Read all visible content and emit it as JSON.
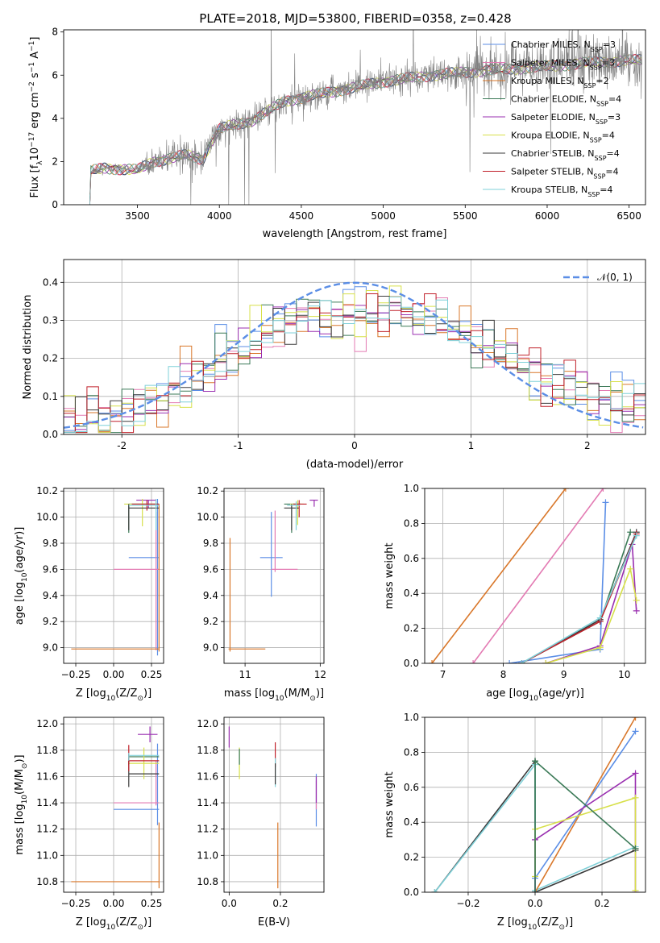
{
  "figure": {
    "title": "PLATE=2018, MJD=53800, FIBERID=0358, z=0.428"
  },
  "colors": {
    "Chabrier MILES": "#5b8ee6",
    "Salpeter MILES": "#e37bb3",
    "Kroupa MILES": "#d9772a",
    "Chabrier ELODIE": "#3b7a57",
    "Salpeter ELODIE": "#9a2fb0",
    "Kroupa ELODIE": "#d7e04a",
    "Chabrier STELIB": "#3a3a3a",
    "Salpeter STELIB": "#c0202a",
    "Kroupa STELIB": "#7fd0d8",
    "data": "#808080",
    "normal": "#5b8ee6"
  },
  "models": [
    {
      "name": "Chabrier MILES",
      "label": "Chabrier MILES, N",
      "sub": "SSP",
      "n": "=3"
    },
    {
      "name": "Salpeter MILES",
      "label": "Salpeter MILES, N",
      "sub": "SSP",
      "n": "=3"
    },
    {
      "name": "Kroupa MILES",
      "label": "Kroupa MILES, N",
      "sub": "SSP",
      "n": "=2"
    },
    {
      "name": "Chabrier ELODIE",
      "label": "Chabrier ELODIE, N",
      "sub": "SSP",
      "n": "=4"
    },
    {
      "name": "Salpeter ELODIE",
      "label": "Salpeter ELODIE, N",
      "sub": "SSP",
      "n": "=3"
    },
    {
      "name": "Kroupa ELODIE",
      "label": "Kroupa ELODIE, N",
      "sub": "SSP",
      "n": "=4"
    },
    {
      "name": "Chabrier STELIB",
      "label": "Chabrier STELIB, N",
      "sub": "SSP",
      "n": "=4"
    },
    {
      "name": "Salpeter STELIB",
      "label": "Salpeter STELIB, N",
      "sub": "SSP",
      "n": "=4"
    },
    {
      "name": "Kroupa STELIB",
      "label": "Kroupa STELIB, N",
      "sub": "SSP",
      "n": "=4"
    }
  ],
  "chart_data": [
    {
      "id": "spectrum",
      "type": "line",
      "xlabel": "wavelength [Angstrom, rest frame]",
      "ylabel_parts": [
        "Flux [f",
        "λ",
        "10",
        "−17",
        " erg cm",
        "−2",
        " s",
        "−1",
        " A",
        "−1",
        "]"
      ],
      "xlim": [
        3050,
        6600
      ],
      "ylim": [
        0,
        8.1
      ],
      "xticks": [
        3500,
        4000,
        4500,
        5000,
        5500,
        6000,
        6500
      ],
      "yticks": [
        0,
        2,
        4,
        6,
        8
      ],
      "x_start": 3210,
      "x_end": 6580,
      "continuum_knots": [
        [
          3210,
          0.0
        ],
        [
          3215,
          1.55
        ],
        [
          3300,
          1.7
        ],
        [
          3500,
          1.6
        ],
        [
          3600,
          2.0
        ],
        [
          3800,
          2.3
        ],
        [
          3900,
          2.1
        ],
        [
          3950,
          2.9
        ],
        [
          4000,
          3.5
        ],
        [
          4200,
          3.9
        ],
        [
          4400,
          4.8
        ],
        [
          4600,
          5.1
        ],
        [
          4800,
          5.4
        ],
        [
          5000,
          5.7
        ],
        [
          5300,
          6.0
        ],
        [
          5600,
          6.2
        ],
        [
          6000,
          6.4
        ],
        [
          6300,
          6.6
        ],
        [
          6580,
          6.7
        ]
      ]
    },
    {
      "id": "residuals",
      "type": "line",
      "xlabel": "(data-model)/error",
      "ylabel": "Normed distribution",
      "xlim": [
        -2.5,
        2.5
      ],
      "ylim": [
        0,
        0.46
      ],
      "xticks": [
        -2,
        -1,
        0,
        1,
        2
      ],
      "yticks": [
        0.0,
        0.1,
        0.2,
        0.3,
        0.4
      ],
      "legend": "𝒩(0, 1)",
      "bin_width": 0.1,
      "histogram_envelope": [
        [
          -2.5,
          0.03
        ],
        [
          -2.0,
          0.055
        ],
        [
          -1.5,
          0.12
        ],
        [
          -1.0,
          0.22
        ],
        [
          -0.5,
          0.31
        ],
        [
          0.0,
          0.33
        ],
        [
          0.5,
          0.32
        ],
        [
          1.0,
          0.26
        ],
        [
          1.5,
          0.17
        ],
        [
          2.0,
          0.1
        ],
        [
          2.5,
          0.065
        ]
      ]
    },
    {
      "id": "z-age",
      "type": "scatter",
      "xlabel_parts": [
        "Z [log",
        "10",
        "(Z/Z",
        "⊙",
        ")]"
      ],
      "ylabel_parts": [
        "age  [log",
        "10",
        "(age/yr)]"
      ],
      "xlim": [
        -0.33,
        0.33
      ],
      "ylim": [
        8.88,
        10.22
      ],
      "xticks": [
        -0.25,
        0.0,
        0.25
      ],
      "xtick_labels": [
        "−0.25",
        "0.00",
        "0.25"
      ],
      "yticks": [
        9.0,
        9.2,
        9.4,
        9.6,
        9.8,
        10.0,
        10.2
      ],
      "points": [
        {
          "m": "Chabrier MILES",
          "x": 0.29,
          "xe": [
            0.19,
            0.01
          ],
          "y": 9.69,
          "ye": [
            0.75,
            0.45
          ]
        },
        {
          "m": "Salpeter MILES",
          "x": 0.28,
          "xe": [
            0.28,
            0.02
          ],
          "y": 9.6,
          "ye": [
            0.62,
            0.44
          ]
        },
        {
          "m": "Kroupa MILES",
          "x": 0.3,
          "xe": [
            0.58,
            0.0
          ],
          "y": 8.99,
          "ye": [
            0.02,
            1.11
          ]
        },
        {
          "m": "Chabrier ELODIE",
          "x": 0.1,
          "xe": [
            0.0,
            0.2
          ],
          "y": 10.1,
          "ye": [
            0.22,
            0.0
          ]
        },
        {
          "m": "Salpeter ELODIE",
          "x": 0.23,
          "xe": [
            0.08,
            0.05
          ],
          "y": 10.13,
          "ye": [
            0.06,
            0.0
          ]
        },
        {
          "m": "Kroupa ELODIE",
          "x": 0.19,
          "xe": [
            0.12,
            0.1
          ],
          "y": 10.1,
          "ye": [
            0.17,
            0.04
          ]
        },
        {
          "m": "Chabrier STELIB",
          "x": 0.1,
          "xe": [
            0.0,
            0.2
          ],
          "y": 10.07,
          "ye": [
            0.17,
            0.03
          ]
        },
        {
          "m": "Salpeter STELIB",
          "x": 0.22,
          "xe": [
            0.1,
            0.08
          ],
          "y": 10.1,
          "ye": [
            0.05,
            0.03
          ]
        },
        {
          "m": "Kroupa STELIB",
          "x": 0.28,
          "xe": [
            0.18,
            0.02
          ],
          "y": 10.09,
          "ye": [
            0.19,
            0.05
          ]
        }
      ]
    },
    {
      "id": "mass-age",
      "type": "scatter",
      "xlabel_parts": [
        "mass [log",
        "10",
        "(M/M",
        "⊙",
        ")]"
      ],
      "ylabel_parts": [],
      "xlim": [
        10.72,
        12.05
      ],
      "ylim": [
        8.88,
        10.22
      ],
      "xticks": [
        11,
        12
      ],
      "xtick_labels": [
        "11",
        "12"
      ],
      "yticks": [
        9.0,
        9.2,
        9.4,
        9.6,
        9.8,
        10.0,
        10.2
      ],
      "points": [
        {
          "m": "Chabrier MILES",
          "x": 11.35,
          "xe": [
            0.15,
            0.15
          ],
          "y": 9.69,
          "ye": [
            0.3,
            0.35
          ]
        },
        {
          "m": "Salpeter MILES",
          "x": 11.4,
          "xe": [
            0.05,
            0.3
          ],
          "y": 9.6,
          "ye": [
            0.02,
            0.45
          ]
        },
        {
          "m": "Kroupa MILES",
          "x": 10.8,
          "xe": [
            0.02,
            0.47
          ],
          "y": 8.99,
          "ye": [
            0.02,
            0.85
          ]
        },
        {
          "m": "Chabrier ELODIE",
          "x": 11.62,
          "xe": [
            0.1,
            0.12
          ],
          "y": 10.1,
          "ye": [
            0.22,
            0.0
          ]
        },
        {
          "m": "Salpeter ELODIE",
          "x": 11.92,
          "xe": [
            0.06,
            0.05
          ],
          "y": 10.13,
          "ye": [
            0.05,
            0.0
          ]
        },
        {
          "m": "Kroupa ELODIE",
          "x": 11.7,
          "xe": [
            0.1,
            0.08
          ],
          "y": 10.1,
          "ye": [
            0.16,
            0.03
          ]
        },
        {
          "m": "Chabrier STELIB",
          "x": 11.62,
          "xe": [
            0.1,
            0.1
          ],
          "y": 10.07,
          "ye": [
            0.17,
            0.03
          ]
        },
        {
          "m": "Salpeter STELIB",
          "x": 11.72,
          "xe": [
            0.08,
            0.1
          ],
          "y": 10.1,
          "ye": [
            0.1,
            0.03
          ]
        },
        {
          "m": "Kroupa STELIB",
          "x": 11.68,
          "xe": [
            0.12,
            0.05
          ],
          "y": 10.09,
          "ye": [
            0.19,
            0.03
          ]
        }
      ]
    },
    {
      "id": "age-weight",
      "type": "line",
      "xlabel_parts": [
        "age  [log",
        "10",
        "(age/yr)]"
      ],
      "ylabel": "mass weight",
      "xlim": [
        6.7,
        10.35
      ],
      "ylim": [
        0,
        1.0
      ],
      "xticks": [
        7,
        8,
        9,
        10
      ],
      "yticks": [
        0.0,
        0.2,
        0.4,
        0.6,
        0.8,
        1.0
      ],
      "series": [
        {
          "m": "Kroupa MILES",
          "x": [
            6.82,
            9.03
          ],
          "y": [
            0.0,
            1.0
          ]
        },
        {
          "m": "Salpeter MILES",
          "x": [
            7.5,
            9.65
          ],
          "y": [
            0.0,
            1.0
          ]
        },
        {
          "m": "Chabrier MILES",
          "x": [
            8.1,
            9.6,
            9.69
          ],
          "y": [
            0.0,
            0.08,
            0.92
          ]
        },
        {
          "m": "Salpeter ELODIE",
          "x": [
            8.7,
            9.6,
            10.13,
            10.2
          ],
          "y": [
            0.0,
            0.1,
            0.68,
            0.3
          ]
        },
        {
          "m": "Chabrier ELODIE",
          "x": [
            8.3,
            9.6,
            10.1
          ],
          "y": [
            0.0,
            0.24,
            0.75
          ]
        },
        {
          "m": "Kroupa ELODIE",
          "x": [
            8.7,
            9.6,
            10.1,
            10.2
          ],
          "y": [
            0.0,
            0.09,
            0.54,
            0.36
          ]
        },
        {
          "m": "Chabrier STELIB",
          "x": [
            8.3,
            9.6,
            10.2
          ],
          "y": [
            0.0,
            0.25,
            0.75
          ]
        },
        {
          "m": "Salpeter STELIB",
          "x": [
            8.3,
            9.6,
            10.2
          ],
          "y": [
            0.0,
            0.24,
            0.74
          ]
        },
        {
          "m": "Kroupa STELIB",
          "x": [
            8.3,
            9.6,
            10.2
          ],
          "y": [
            0.0,
            0.26,
            0.73
          ]
        }
      ]
    },
    {
      "id": "z-mass",
      "type": "scatter",
      "xlabel_parts": [
        "Z [log",
        "10",
        "(Z/Z",
        "⊙",
        ")]"
      ],
      "ylabel_parts": [
        "mass [log",
        "10",
        "(M/M",
        "⊙",
        ")]"
      ],
      "xlim": [
        -0.33,
        0.33
      ],
      "ylim": [
        10.72,
        12.05
      ],
      "xticks": [
        -0.25,
        0.0,
        0.25
      ],
      "xtick_labels": [
        "−0.25",
        "0.00",
        "0.25"
      ],
      "yticks": [
        10.8,
        11.0,
        11.2,
        11.4,
        11.6,
        11.8,
        12.0
      ],
      "points": [
        {
          "m": "Chabrier MILES",
          "x": 0.29,
          "xe": [
            0.29,
            0.01
          ],
          "y": 11.35,
          "ye": [
            0.12,
            0.5
          ]
        },
        {
          "m": "Salpeter MILES",
          "x": 0.28,
          "xe": [
            0.28,
            0.02
          ],
          "y": 11.4,
          "ye": [
            0.02,
            0.32
          ]
        },
        {
          "m": "Kroupa MILES",
          "x": 0.3,
          "xe": [
            0.58,
            0.0
          ],
          "y": 10.8,
          "ye": [
            0.05,
            0.45
          ]
        },
        {
          "m": "Chabrier ELODIE",
          "x": 0.1,
          "xe": [
            0.0,
            0.2
          ],
          "y": 11.75,
          "ye": [
            0.06,
            0.02
          ]
        },
        {
          "m": "Salpeter ELODIE",
          "x": 0.24,
          "xe": [
            0.08,
            0.05
          ],
          "y": 11.92,
          "ye": [
            0.06,
            0.06
          ]
        },
        {
          "m": "Kroupa ELODIE",
          "x": 0.2,
          "xe": [
            0.1,
            0.1
          ],
          "y": 11.7,
          "ye": [
            0.12,
            0.12
          ]
        },
        {
          "m": "Chabrier STELIB",
          "x": 0.1,
          "xe": [
            0.0,
            0.2
          ],
          "y": 11.62,
          "ye": [
            0.1,
            0.12
          ]
        },
        {
          "m": "Salpeter STELIB",
          "x": 0.1,
          "xe": [
            0.0,
            0.2
          ],
          "y": 11.72,
          "ye": [
            0.08,
            0.12
          ]
        },
        {
          "m": "Kroupa STELIB",
          "x": 0.1,
          "xe": [
            0.0,
            0.2
          ],
          "y": 11.76,
          "ye": [
            0.04,
            0.02
          ]
        }
      ]
    },
    {
      "id": "ebv-mass",
      "type": "scatter",
      "xlabel": "E(B-V)",
      "ylabel_parts": [],
      "xlim": [
        -0.02,
        0.37
      ],
      "ylim": [
        10.72,
        12.05
      ],
      "xticks": [
        0.0,
        0.2
      ],
      "xtick_labels": [
        "0.0",
        "0.2"
      ],
      "yticks": [
        10.8,
        11.0,
        11.2,
        11.4,
        11.6,
        11.8,
        12.0
      ],
      "points": [
        {
          "m": "Salpeter ELODIE",
          "x": 0.0,
          "xe": [
            0,
            0
          ],
          "y": 11.92,
          "ye": [
            0.1,
            0.06
          ]
        },
        {
          "m": "Kroupa ELODIE",
          "x": 0.04,
          "xe": [
            0,
            0
          ],
          "y": 11.7,
          "ye": [
            0.12,
            0.12
          ]
        },
        {
          "m": "Chabrier ELODIE",
          "x": 0.04,
          "xe": [
            0,
            0
          ],
          "y": 11.75,
          "ye": [
            0.06,
            0.06
          ]
        },
        {
          "m": "Salpeter STELIB",
          "x": 0.18,
          "xe": [
            0,
            0
          ],
          "y": 11.75,
          "ye": [
            0.08,
            0.11
          ]
        },
        {
          "m": "Kroupa STELIB",
          "x": 0.18,
          "xe": [
            0,
            0
          ],
          "y": 11.62,
          "ye": [
            0.1,
            0.12
          ]
        },
        {
          "m": "Chabrier STELIB",
          "x": 0.18,
          "xe": [
            0,
            0
          ],
          "y": 11.62,
          "ye": [
            0.08,
            0.08
          ]
        },
        {
          "m": "Kroupa MILES",
          "x": 0.19,
          "xe": [
            0,
            0
          ],
          "y": 10.95,
          "ye": [
            0.2,
            0.3
          ]
        },
        {
          "m": "Chabrier MILES",
          "x": 0.34,
          "xe": [
            0,
            0
          ],
          "y": 11.4,
          "ye": [
            0.18,
            0.22
          ]
        },
        {
          "m": "Salpeter MILES",
          "x": 0.34,
          "xe": [
            0,
            0
          ],
          "y": 11.45,
          "ye": [
            0.1,
            0.12
          ]
        },
        {
          "m": "Salpeter ELODIE",
          "x": 0.34,
          "xe": [
            0,
            0
          ],
          "y": 11.5,
          "ye": [
            0.1,
            0.1
          ]
        }
      ]
    },
    {
      "id": "z-weight",
      "type": "line",
      "xlabel_parts": [
        "Z [log",
        "10",
        "(Z/Z",
        "⊙",
        ")]"
      ],
      "ylabel": "mass weight",
      "xlim": [
        -0.33,
        0.33
      ],
      "ylim": [
        0,
        1.0
      ],
      "xticks": [
        -0.2,
        0.0,
        0.2
      ],
      "xtick_labels": [
        "−0.2",
        "0.0",
        "0.2"
      ],
      "yticks": [
        0.0,
        0.2,
        0.4,
        0.6,
        0.8,
        1.0
      ],
      "series": [
        {
          "m": "Chabrier STELIB",
          "x": [
            -0.3,
            0.0,
            0.0,
            0.3
          ],
          "y": [
            0.0,
            0.75,
            0.0,
            0.24
          ]
        },
        {
          "m": "Kroupa STELIB",
          "x": [
            -0.3,
            0.0,
            0.0,
            0.3
          ],
          "y": [
            0.0,
            0.73,
            0.01,
            0.26
          ]
        },
        {
          "m": "Kroupa MILES",
          "x": [
            0.0,
            0.3
          ],
          "y": [
            0.0,
            1.0
          ]
        },
        {
          "m": "Chabrier MILES",
          "x": [
            0.0,
            0.0,
            0.3
          ],
          "y": [
            0.0,
            0.08,
            0.92
          ]
        },
        {
          "m": "Salpeter ELODIE",
          "x": [
            0.0,
            0.0,
            0.3,
            0.3
          ],
          "y": [
            0.0,
            0.3,
            0.68,
            0.0
          ]
        },
        {
          "m": "Kroupa ELODIE",
          "x": [
            0.0,
            0.0,
            0.3,
            0.3
          ],
          "y": [
            0.09,
            0.36,
            0.54,
            0.01
          ]
        },
        {
          "m": "Chabrier ELODIE",
          "x": [
            0.0,
            0.0,
            0.3
          ],
          "y": [
            0.0,
            0.75,
            0.25
          ]
        }
      ]
    }
  ]
}
